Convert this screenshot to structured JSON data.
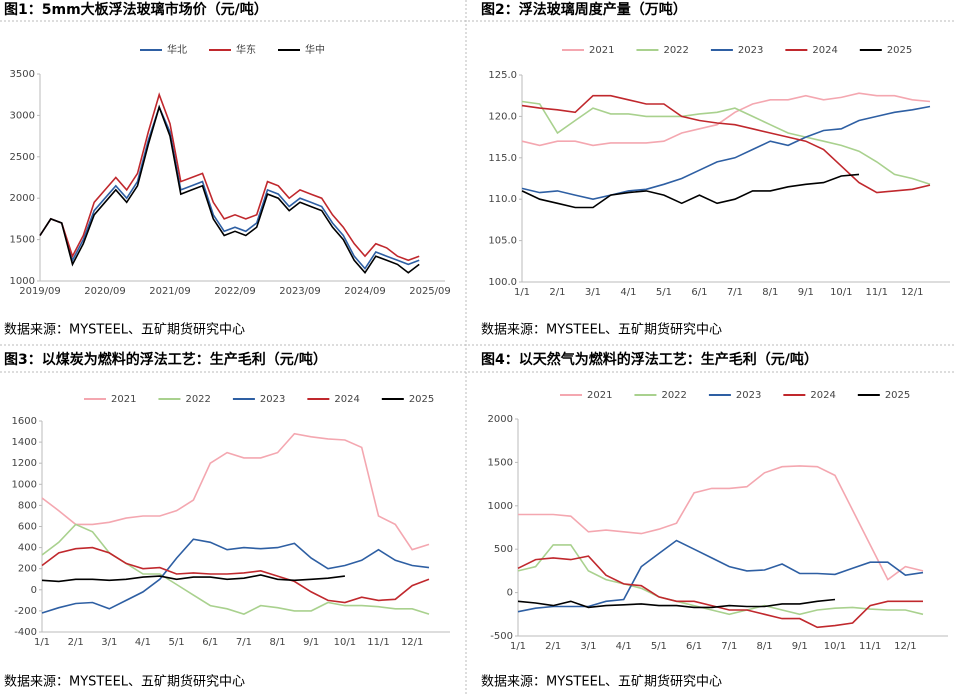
{
  "chart_data": [
    {
      "type": "line",
      "title": "图1：5mm大板浮法玻璃市场价（元/吨）",
      "source": "数据来源：MYSTEEL、五矿期货研究中心",
      "categories": [
        "2019/09",
        null,
        null,
        null,
        null,
        null,
        "2020/09",
        null,
        null,
        null,
        null,
        null,
        "2021/09",
        null,
        null,
        null,
        null,
        null,
        "2022/09",
        null,
        null,
        null,
        null,
        null,
        "2023/09",
        null,
        null,
        null,
        null,
        null,
        "2024/09",
        null,
        null,
        null,
        null,
        null,
        "2025/09"
      ],
      "series": [
        {
          "name": "华北",
          "color": "#2e5fa3",
          "values": [
            1550,
            1750,
            1700,
            1250,
            1500,
            1850,
            2000,
            2150,
            2000,
            2200,
            2700,
            3100,
            2800,
            2100,
            2150,
            2200,
            1800,
            1600,
            1650,
            1600,
            1700,
            2100,
            2050,
            1900,
            2000,
            1950,
            1900,
            1700,
            1550,
            1300,
            1150,
            1350,
            1300,
            1250,
            1200,
            1250,
            null
          ]
        },
        {
          "name": "华东",
          "color": "#c0282d",
          "values": [
            1550,
            1750,
            1700,
            1300,
            1550,
            1950,
            2100,
            2250,
            2100,
            2300,
            2800,
            3250,
            2900,
            2200,
            2250,
            2300,
            1950,
            1750,
            1800,
            1750,
            1800,
            2200,
            2150,
            2000,
            2100,
            2050,
            2000,
            1800,
            1650,
            1450,
            1300,
            1450,
            1400,
            1300,
            1250,
            1300,
            null
          ]
        },
        {
          "name": "华中",
          "color": "#000000",
          "values": [
            1550,
            1750,
            1700,
            1200,
            1450,
            1800,
            1950,
            2100,
            1950,
            2150,
            2650,
            3100,
            2750,
            2050,
            2100,
            2150,
            1750,
            1550,
            1600,
            1550,
            1650,
            2050,
            2000,
            1850,
            1950,
            1900,
            1850,
            1650,
            1500,
            1250,
            1100,
            1300,
            1250,
            1200,
            1100,
            1200,
            null
          ]
        }
      ],
      "ylim": [
        1000,
        3500
      ],
      "yticks": [
        1000,
        1500,
        2000,
        2500,
        3000,
        3500
      ]
    },
    {
      "type": "line",
      "title": "图2：浮法玻璃周度产量（万吨）",
      "source": "数据来源：MYSTEEL、五矿期货研究中心",
      "categories": [
        "1/1",
        null,
        "2/1",
        null,
        "3/1",
        null,
        "4/1",
        null,
        "5/1",
        null,
        "6/1",
        null,
        "7/1",
        null,
        "8/1",
        null,
        "9/1",
        null,
        "10/1",
        null,
        "11/1",
        null,
        "12/1",
        null
      ],
      "series": [
        {
          "name": "2021",
          "color": "#f4a7b0",
          "values": [
            117,
            116.5,
            117,
            117,
            116.5,
            116.8,
            116.8,
            116.8,
            117,
            118,
            118.5,
            119,
            120.5,
            121.5,
            122,
            122,
            122.5,
            122,
            122.3,
            122.8,
            122.5,
            122.5,
            122,
            121.8
          ]
        },
        {
          "name": "2022",
          "color": "#a9d18e",
          "values": [
            121.8,
            121.5,
            118,
            119.5,
            121,
            120.3,
            120.3,
            120,
            120,
            120,
            120.3,
            120.5,
            121,
            120,
            119,
            118,
            117.5,
            117,
            116.5,
            115.8,
            114.5,
            113,
            112.5,
            111.8
          ]
        },
        {
          "name": "2023",
          "color": "#2e5fa3",
          "values": [
            111.3,
            110.8,
            111,
            110.5,
            110,
            110.5,
            111,
            111.2,
            111.8,
            112.5,
            113.5,
            114.5,
            115,
            116,
            117,
            116.5,
            117.5,
            118.3,
            118.5,
            119.5,
            120,
            120.5,
            120.8,
            121.2
          ]
        },
        {
          "name": "2024",
          "color": "#c0282d",
          "values": [
            121.3,
            121,
            120.8,
            120.5,
            122.5,
            122.5,
            122,
            121.5,
            121.5,
            120,
            119.5,
            119.2,
            119,
            118.5,
            118,
            117.5,
            117,
            116,
            114,
            112,
            110.8,
            111,
            111.2,
            111.7
          ]
        },
        {
          "name": "2025",
          "color": "#000000",
          "values": [
            111,
            110,
            109.5,
            109,
            109,
            110.5,
            110.8,
            111,
            110.5,
            109.5,
            110.5,
            109.5,
            110,
            111,
            111,
            111.5,
            111.8,
            112,
            112.8,
            113,
            null,
            null,
            null,
            null
          ]
        }
      ],
      "ylim": [
        100,
        125
      ],
      "yticks": [
        {
          "value": 100,
          "label": "100.0"
        },
        {
          "value": 105,
          "label": "105.0"
        },
        {
          "value": 110,
          "label": "110.0"
        },
        {
          "value": 115,
          "label": "115.0"
        },
        {
          "value": 120,
          "label": "120.0"
        },
        {
          "value": 125,
          "label": "125.0"
        }
      ]
    },
    {
      "type": "line",
      "title": "图3：以煤炭为燃料的浮法工艺：生产毛利（元/吨）",
      "source": "数据来源：MYSTEEL、五矿期货研究中心",
      "categories": [
        "1/1",
        null,
        "2/1",
        null,
        "3/1",
        null,
        "4/1",
        null,
        "5/1",
        null,
        "6/1",
        null,
        "7/1",
        null,
        "8/1",
        null,
        "9/1",
        null,
        "10/1",
        null,
        "11/1",
        null,
        "12/1",
        null
      ],
      "series": [
        {
          "name": "2021",
          "color": "#f4a7b0",
          "values": [
            870,
            750,
            620,
            620,
            640,
            680,
            700,
            700,
            750,
            850,
            1200,
            1300,
            1250,
            1250,
            1300,
            1480,
            1450,
            1430,
            1420,
            1350,
            700,
            620,
            380,
            430
          ]
        },
        {
          "name": "2022",
          "color": "#a9d18e",
          "values": [
            330,
            450,
            620,
            550,
            350,
            250,
            150,
            150,
            50,
            -50,
            -150,
            -180,
            -230,
            -150,
            -170,
            -200,
            -200,
            -120,
            -150,
            -150,
            -160,
            -180,
            -180,
            -230
          ]
        },
        {
          "name": "2023",
          "color": "#2e5fa3",
          "values": [
            -220,
            -170,
            -130,
            -120,
            -180,
            -100,
            -20,
            100,
            300,
            480,
            450,
            380,
            400,
            390,
            400,
            440,
            300,
            200,
            230,
            280,
            380,
            280,
            230,
            210
          ]
        },
        {
          "name": "2024",
          "color": "#c0282d",
          "values": [
            230,
            350,
            390,
            400,
            350,
            250,
            200,
            210,
            150,
            160,
            150,
            150,
            160,
            180,
            130,
            80,
            -20,
            -100,
            -120,
            -70,
            -100,
            -90,
            40,
            100
          ]
        },
        {
          "name": "2025",
          "color": "#000000",
          "values": [
            90,
            80,
            100,
            100,
            90,
            100,
            120,
            130,
            100,
            120,
            120,
            100,
            110,
            140,
            100,
            90,
            100,
            110,
            130,
            null,
            null,
            null,
            null,
            null
          ]
        }
      ],
      "ylim": [
        -400,
        1600
      ],
      "yticks": [
        -400,
        -200,
        0,
        200,
        400,
        600,
        800,
        1000,
        1200,
        1400,
        1600
      ]
    },
    {
      "type": "line",
      "title": "图4：以天然气为燃料的浮法工艺：生产毛利（元/吨）",
      "source": "数据来源：MYSTEEL、五矿期货研究中心",
      "categories": [
        "1/1",
        null,
        "2/1",
        null,
        "3/1",
        null,
        "4/1",
        null,
        "5/1",
        null,
        "6/1",
        null,
        "7/1",
        null,
        "8/1",
        null,
        "9/1",
        null,
        "10/1",
        null,
        "11/1",
        null,
        "12/1",
        null
      ],
      "series": [
        {
          "name": "2021",
          "color": "#f4a7b0",
          "values": [
            900,
            900,
            900,
            880,
            700,
            720,
            700,
            680,
            730,
            800,
            1150,
            1200,
            1200,
            1220,
            1380,
            1450,
            1460,
            1450,
            1350,
            950,
            550,
            150,
            300,
            250
          ]
        },
        {
          "name": "2022",
          "color": "#a9d18e",
          "values": [
            250,
            300,
            550,
            550,
            250,
            150,
            100,
            50,
            -50,
            -100,
            -150,
            -200,
            -250,
            -200,
            -150,
            -200,
            -250,
            -200,
            -180,
            -170,
            -190,
            -200,
            -200,
            -250
          ]
        },
        {
          "name": "2023",
          "color": "#2e5fa3",
          "values": [
            -220,
            -180,
            -160,
            -160,
            -160,
            -100,
            -80,
            300,
            450,
            600,
            500,
            400,
            300,
            250,
            260,
            330,
            220,
            220,
            210,
            280,
            350,
            350,
            200,
            230
          ]
        },
        {
          "name": "2024",
          "color": "#c0282d",
          "values": [
            280,
            380,
            400,
            380,
            420,
            200,
            100,
            80,
            -50,
            -100,
            -100,
            -150,
            -200,
            -200,
            -250,
            -300,
            -300,
            -400,
            -380,
            -350,
            -150,
            -100,
            -100,
            -100
          ]
        },
        {
          "name": "2025",
          "color": "#000000",
          "values": [
            -100,
            -120,
            -150,
            -100,
            -170,
            -150,
            -140,
            -130,
            -150,
            -150,
            -170,
            -170,
            -150,
            -160,
            -160,
            -130,
            -130,
            -100,
            -80,
            null,
            null,
            null,
            null,
            null
          ]
        }
      ],
      "ylim": [
        -500,
        2000
      ],
      "yticks": [
        -500,
        0,
        500,
        1000,
        1500,
        2000
      ]
    }
  ]
}
